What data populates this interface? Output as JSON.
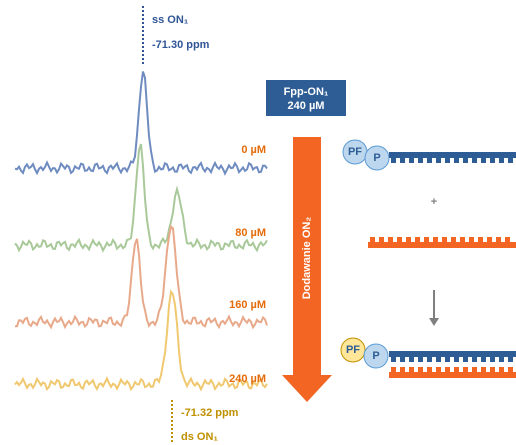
{
  "top_peak": {
    "label": "ss ON₁",
    "shift": "-71.30 ppm"
  },
  "reagent": {
    "name": "Fpp-ON₁",
    "concentration": "240 µM"
  },
  "spectra": [
    {
      "concentration": "0 µM"
    },
    {
      "concentration": "80 µM"
    },
    {
      "concentration": "160 µM"
    },
    {
      "concentration": "240 µM"
    }
  ],
  "arrow_label": "Dodawanie ON₂",
  "bottom_peak": {
    "shift": "-71.32 ppm",
    "label": "ds ON₁"
  },
  "scheme": {
    "top": {
      "fluorophore": "PF",
      "probe": "P"
    },
    "plus": "+",
    "bottom": {
      "fluorophore": "PF",
      "probe": "P"
    }
  }
}
